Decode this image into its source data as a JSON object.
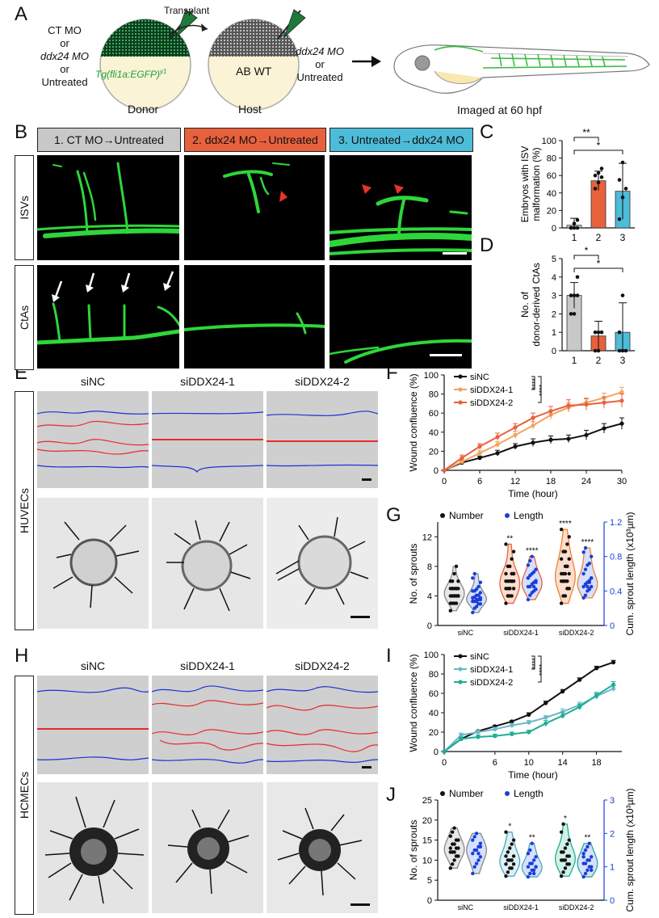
{
  "panel_letters": [
    "A",
    "B",
    "C",
    "D",
    "E",
    "F",
    "G",
    "H",
    "I",
    "J"
  ],
  "panelA": {
    "donor_options": [
      "CT MO",
      "or",
      "ddx24 MO",
      "or",
      "Untreated"
    ],
    "donor_transgene": "Tg(fli1a:EGFP)",
    "donor_transgene_sup": "y1",
    "transplant_label": "Transplant",
    "host_label_inside": "AB WT",
    "host_options": [
      "ddx24 MO",
      "or",
      "Untreated"
    ],
    "donor_caption": "Donor",
    "host_caption": "Host",
    "imaged_caption": "Imaged at 60 hpf"
  },
  "panelB": {
    "headers": [
      "1. CT MO→Untreated",
      "2. ddx24 MO→Untreated",
      "3. Untreated→ddx24 MO"
    ],
    "header_colors": [
      "#c8c8c8",
      "#e8613d",
      "#4dbcd8"
    ],
    "row_labels": [
      "ISVs",
      "CtAs"
    ]
  },
  "panelE": {
    "columns": [
      "siNC",
      "siDDX24-1",
      "siDDX24-2"
    ],
    "row_label": "HUVECs"
  },
  "panelH": {
    "columns": [
      "siNC",
      "siDDX24-1",
      "siDDX24-2"
    ],
    "row_label": "HCMECs"
  },
  "colors": {
    "ct": "#c8c8c8",
    "ddx_mo": "#e8613d",
    "untreated_ddx": "#4dbcd8",
    "siNC": "#111111",
    "siDDX24_1_F": "#f4a35e",
    "siDDX24_2_F": "#e8613d",
    "siDDX24_1_I": "#6bb8c9",
    "siDDX24_2_I": "#1fae94",
    "number": "#111111",
    "length": "#1a3fd6"
  },
  "chart_data": [
    {
      "id": "C",
      "type": "bar",
      "categories": [
        "1",
        "2",
        "3"
      ],
      "values": [
        3,
        54,
        42
      ],
      "errors": [
        8,
        11,
        32
      ],
      "points": [
        [
          0,
          0,
          0,
          0,
          5,
          9
        ],
        [
          45,
          52,
          58,
          60,
          63,
          68
        ],
        [
          10,
          35,
          45,
          55,
          75
        ]
      ],
      "ylabel": "Embryos with ISV malformation (%)",
      "ylim": [
        0,
        100
      ],
      "yticks": [
        0,
        20,
        40,
        60,
        80,
        100
      ],
      "significance": [
        {
          "pair": [
            1,
            2
          ],
          "label": "**"
        },
        {
          "pair": [
            1,
            3
          ],
          "label": "*"
        }
      ]
    },
    {
      "id": "D",
      "type": "bar",
      "categories": [
        "1",
        "2",
        "3"
      ],
      "values": [
        3,
        0.8,
        1
      ],
      "errors": [
        0.7,
        0.8,
        1.6
      ],
      "points": [
        [
          2,
          2,
          3,
          3,
          3,
          4
        ],
        [
          0,
          0,
          1,
          1,
          1
        ],
        [
          0,
          0,
          0,
          1,
          3
        ]
      ],
      "ylabel": "No. of donor-derived CtAs",
      "ylim": [
        0,
        5
      ],
      "yticks": [
        0,
        1,
        2,
        3,
        4,
        5
      ],
      "significance": [
        {
          "pair": [
            1,
            2
          ],
          "label": "*"
        },
        {
          "pair": [
            1,
            3
          ],
          "label": "*"
        }
      ]
    },
    {
      "id": "F",
      "type": "line",
      "x": [
        0,
        3,
        6,
        9,
        12,
        15,
        18,
        21,
        24,
        27,
        30
      ],
      "series": [
        {
          "name": "siNC",
          "values": [
            0,
            8,
            13,
            18,
            25,
            29,
            32,
            33,
            37,
            44,
            49
          ],
          "errors": [
            0,
            2,
            2,
            3,
            3,
            4,
            4,
            4,
            5,
            5,
            6
          ]
        },
        {
          "name": "siDDX24-1",
          "values": [
            0,
            9,
            18,
            27,
            37,
            47,
            58,
            66,
            71,
            76,
            82
          ],
          "errors": [
            0,
            2,
            3,
            3,
            4,
            4,
            5,
            5,
            5,
            5,
            5
          ]
        },
        {
          "name": "siDDX24-2",
          "values": [
            0,
            13,
            25,
            35,
            45,
            55,
            62,
            68,
            69,
            71,
            73
          ],
          "errors": [
            0,
            3,
            3,
            4,
            4,
            5,
            5,
            6,
            6,
            6,
            7
          ]
        }
      ],
      "xlabel": "Time (hour)",
      "ylabel": "Wound confluence (%)",
      "xlim": [
        0,
        30
      ],
      "ylim": [
        0,
        100
      ],
      "xticks": [
        0,
        6,
        12,
        18,
        24,
        30
      ],
      "yticks": [
        0,
        20,
        40,
        60,
        80,
        100
      ],
      "significance": [
        "****",
        "****"
      ]
    },
    {
      "id": "G",
      "type": "violin",
      "categories": [
        "siNC",
        "siDDX24-1",
        "siDDX24-2"
      ],
      "series": [
        {
          "name": "Number",
          "axis": "left",
          "groups": [
            [
              2,
              3,
              3,
              3,
              4,
              4,
              4,
              4,
              4,
              4,
              5,
              5,
              5,
              5,
              5,
              6,
              6,
              7,
              8,
              4,
              3,
              5,
              4,
              5,
              6
            ],
            [
              3,
              4,
              4,
              4,
              5,
              5,
              5,
              5,
              6,
              6,
              6,
              6,
              6,
              7,
              7,
              7,
              8,
              8,
              9,
              10,
              11,
              4,
              5,
              6,
              7
            ],
            [
              3,
              4,
              4,
              5,
              5,
              6,
              6,
              6,
              6,
              7,
              7,
              7,
              8,
              8,
              9,
              9,
              10,
              10,
              11,
              12,
              13,
              6,
              7,
              8
            ]
          ]
        },
        {
          "name": "Length",
          "axis": "right",
          "groups": [
            [
              0.15,
              0.2,
              0.22,
              0.25,
              0.25,
              0.28,
              0.28,
              0.3,
              0.3,
              0.3,
              0.32,
              0.33,
              0.35,
              0.35,
              0.38,
              0.4,
              0.4,
              0.42,
              0.45,
              0.5,
              0.55,
              0.6,
              0.28,
              0.3,
              0.32
            ],
            [
              0.3,
              0.35,
              0.38,
              0.4,
              0.42,
              0.45,
              0.45,
              0.48,
              0.5,
              0.52,
              0.55,
              0.58,
              0.6,
              0.62,
              0.65,
              0.7,
              0.75,
              0.8,
              0.45,
              0.5,
              0.55
            ],
            [
              0.32,
              0.35,
              0.4,
              0.42,
              0.45,
              0.45,
              0.48,
              0.5,
              0.52,
              0.55,
              0.6,
              0.65,
              0.7,
              0.72,
              0.8,
              0.85,
              0.9,
              0.45,
              0.5,
              0.55
            ]
          ]
        }
      ],
      "significance_number": [
        "",
        "**",
        "****"
      ],
      "significance_length": [
        "",
        "****",
        "****"
      ],
      "ylabel_left": "No. of sprouts",
      "ylabel_right": "Cum. sprout length (x10³µm)",
      "ylim_left": [
        0,
        14
      ],
      "yticks_left": [
        0,
        4,
        8,
        12
      ],
      "ylim_right": [
        0,
        1.2
      ],
      "yticks_right": [
        0,
        0.4,
        0.8,
        1.2
      ]
    },
    {
      "id": "I",
      "type": "line",
      "x": [
        0,
        2,
        4,
        6,
        8,
        10,
        12,
        14,
        16,
        18,
        20
      ],
      "series": [
        {
          "name": "siNC",
          "values": [
            0,
            13,
            21,
            26,
            31,
            38,
            50,
            62,
            74,
            86,
            92
          ],
          "errors": [
            0,
            1,
            1,
            1,
            1,
            2,
            2,
            2,
            2,
            2,
            2
          ]
        },
        {
          "name": "siDDX24-1",
          "values": [
            0,
            17,
            20,
            23,
            27,
            30,
            35,
            41,
            48,
            57,
            65
          ],
          "errors": [
            0,
            2,
            2,
            2,
            2,
            2,
            2,
            3,
            3,
            3,
            3
          ]
        },
        {
          "name": "siDDX24-2",
          "values": [
            0,
            13,
            15,
            16,
            18,
            20,
            29,
            37,
            46,
            58,
            69
          ],
          "errors": [
            0,
            2,
            2,
            2,
            2,
            2,
            3,
            3,
            3,
            3,
            3
          ]
        }
      ],
      "xlabel": "Time (hour)",
      "ylabel": "Wound confluence (%)",
      "xlim": [
        0,
        21
      ],
      "ylim": [
        0,
        100
      ],
      "xticks": [
        0,
        6,
        10,
        14,
        18
      ],
      "yticks": [
        0,
        20,
        40,
        60,
        80,
        100
      ],
      "xtick_labels": [
        "0",
        "6",
        "10",
        "14",
        "18"
      ],
      "significance": [
        "****",
        "****"
      ]
    },
    {
      "id": "J",
      "type": "violin",
      "categories": [
        "siNC",
        "siDDX24-1",
        "siDDX24-2"
      ],
      "series": [
        {
          "name": "Number",
          "axis": "left",
          "groups": [
            [
              8,
              9,
              10,
              11,
              11,
              12,
              12,
              12,
              13,
              13,
              13,
              14,
              14,
              15,
              15,
              16,
              17,
              18
            ],
            [
              6,
              7,
              8,
              8,
              9,
              9,
              10,
              10,
              10,
              11,
              11,
              12,
              13,
              14,
              15,
              17
            ],
            [
              6,
              7,
              8,
              9,
              9,
              10,
              10,
              10,
              11,
              11,
              12,
              12,
              13,
              14,
              15,
              17,
              19
            ]
          ]
        },
        {
          "name": "Length",
          "axis": "right",
          "groups": [
            [
              0.8,
              1.0,
              1.1,
              1.2,
              1.3,
              1.4,
              1.5,
              1.5,
              1.6,
              1.7,
              1.8,
              1.9,
              2.0,
              1.4,
              1.6
            ],
            [
              0.7,
              0.8,
              0.9,
              0.9,
              1.0,
              1.0,
              1.1,
              1.1,
              1.2,
              1.3,
              1.4,
              1.5,
              1.7,
              0.8,
              1.0
            ],
            [
              0.7,
              0.8,
              0.9,
              1.0,
              1.0,
              1.1,
              1.1,
              1.2,
              1.2,
              1.3,
              1.4,
              1.5,
              1.6,
              1.7,
              0.9,
              1.3
            ]
          ]
        }
      ],
      "significance_number": [
        "",
        "*",
        "*"
      ],
      "significance_length": [
        "",
        "**",
        "**"
      ],
      "ylabel_left": "No. of sprouts",
      "ylabel_right": "Cum. sprout length (x10³µm)",
      "ylim_left": [
        0,
        25
      ],
      "yticks_left": [
        0,
        5,
        10,
        15,
        20,
        25
      ],
      "ylim_right": [
        0,
        3
      ],
      "yticks_right": [
        0,
        1,
        2,
        3
      ]
    }
  ]
}
